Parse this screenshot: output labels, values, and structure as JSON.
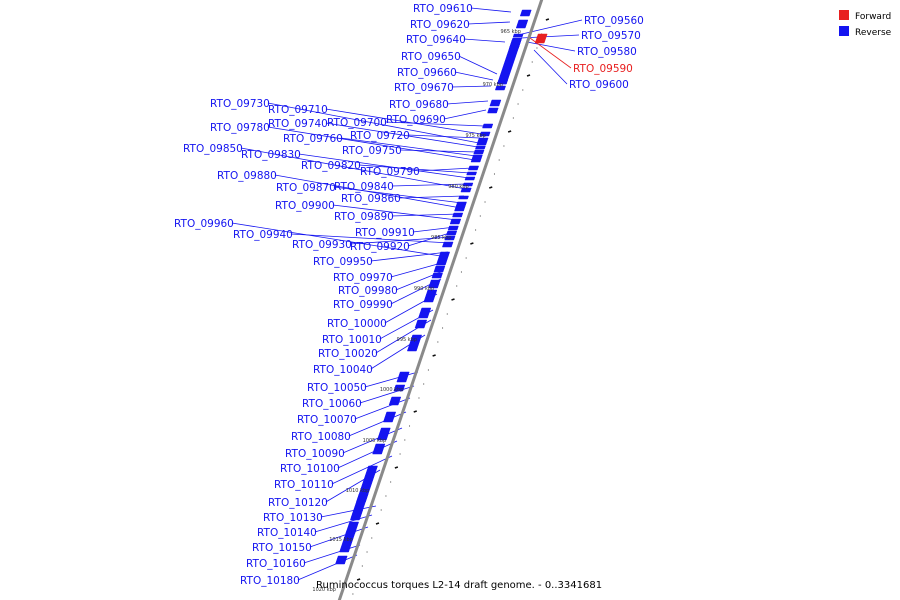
{
  "colors": {
    "forward": "#e82020",
    "reverse": "#1414f0",
    "backbone": "#8a8a8a",
    "tick": "#111111"
  },
  "legend": [
    {
      "label": "Forward",
      "strand": "forward"
    },
    {
      "label": "Reverse",
      "strand": "reverse"
    }
  ],
  "caption": "Ruminococcus torques L2-14 draft genome. - 0..3341681",
  "kbp_labels": [
    "965 kbp",
    "970 kbp",
    "975 kbp",
    "980 kbp",
    "985 kbp",
    "990 kbp",
    "995 kbp",
    "1000 kbp",
    "1005 kbp",
    "1010 kbp",
    "1015 kbp",
    "1020 kbp"
  ],
  "genes": [
    {
      "label": "RTO_09560",
      "strand": "reverse"
    },
    {
      "label": "RTO_09570",
      "strand": "reverse"
    },
    {
      "label": "RTO_09580",
      "strand": "reverse"
    },
    {
      "label": "RTO_09590",
      "strand": "forward"
    },
    {
      "label": "RTO_09600",
      "strand": "reverse"
    },
    {
      "label": "RTO_09610",
      "strand": "reverse"
    },
    {
      "label": "RTO_09620",
      "strand": "reverse"
    },
    {
      "label": "RTO_09640",
      "strand": "reverse"
    },
    {
      "label": "RTO_09650",
      "strand": "reverse"
    },
    {
      "label": "RTO_09660",
      "strand": "reverse"
    },
    {
      "label": "RTO_09670",
      "strand": "reverse"
    },
    {
      "label": "RTO_09680",
      "strand": "reverse"
    },
    {
      "label": "RTO_09690",
      "strand": "reverse"
    },
    {
      "label": "RTO_09700",
      "strand": "reverse"
    },
    {
      "label": "RTO_09710",
      "strand": "reverse"
    },
    {
      "label": "RTO_09720",
      "strand": "reverse"
    },
    {
      "label": "RTO_09730",
      "strand": "reverse"
    },
    {
      "label": "RTO_09740",
      "strand": "reverse"
    },
    {
      "label": "RTO_09750",
      "strand": "reverse"
    },
    {
      "label": "RTO_09760",
      "strand": "reverse"
    },
    {
      "label": "RTO_09780",
      "strand": "reverse"
    },
    {
      "label": "RTO_09790",
      "strand": "reverse"
    },
    {
      "label": "RTO_09820",
      "strand": "reverse"
    },
    {
      "label": "RTO_09830",
      "strand": "reverse"
    },
    {
      "label": "RTO_09840",
      "strand": "reverse"
    },
    {
      "label": "RTO_09850",
      "strand": "reverse"
    },
    {
      "label": "RTO_09860",
      "strand": "reverse"
    },
    {
      "label": "RTO_09870",
      "strand": "reverse"
    },
    {
      "label": "RTO_09880",
      "strand": "reverse"
    },
    {
      "label": "RTO_09890",
      "strand": "reverse"
    },
    {
      "label": "RTO_09900",
      "strand": "reverse"
    },
    {
      "label": "RTO_09910",
      "strand": "reverse"
    },
    {
      "label": "RTO_09920",
      "strand": "reverse"
    },
    {
      "label": "RTO_09930",
      "strand": "reverse"
    },
    {
      "label": "RTO_09940",
      "strand": "reverse"
    },
    {
      "label": "RTO_09950",
      "strand": "reverse"
    },
    {
      "label": "RTO_09960",
      "strand": "reverse"
    },
    {
      "label": "RTO_09970",
      "strand": "reverse"
    },
    {
      "label": "RTO_09980",
      "strand": "reverse"
    },
    {
      "label": "RTO_09990",
      "strand": "reverse"
    },
    {
      "label": "RTO_10000",
      "strand": "reverse"
    },
    {
      "label": "RTO_10010",
      "strand": "reverse"
    },
    {
      "label": "RTO_10020",
      "strand": "reverse"
    },
    {
      "label": "RTO_10040",
      "strand": "reverse"
    },
    {
      "label": "RTO_10050",
      "strand": "reverse"
    },
    {
      "label": "RTO_10060",
      "strand": "reverse"
    },
    {
      "label": "RTO_10070",
      "strand": "reverse"
    },
    {
      "label": "RTO_10080",
      "strand": "reverse"
    },
    {
      "label": "RTO_10090",
      "strand": "reverse"
    },
    {
      "label": "RTO_10100",
      "strand": "reverse"
    },
    {
      "label": "RTO_10110",
      "strand": "reverse"
    },
    {
      "label": "RTO_10120",
      "strand": "reverse"
    },
    {
      "label": "RTO_10130",
      "strand": "reverse"
    },
    {
      "label": "RTO_10140",
      "strand": "reverse"
    },
    {
      "label": "RTO_10150",
      "strand": "reverse"
    },
    {
      "label": "RTO_10160",
      "strand": "reverse"
    },
    {
      "label": "RTO_10180",
      "strand": "reverse"
    }
  ]
}
